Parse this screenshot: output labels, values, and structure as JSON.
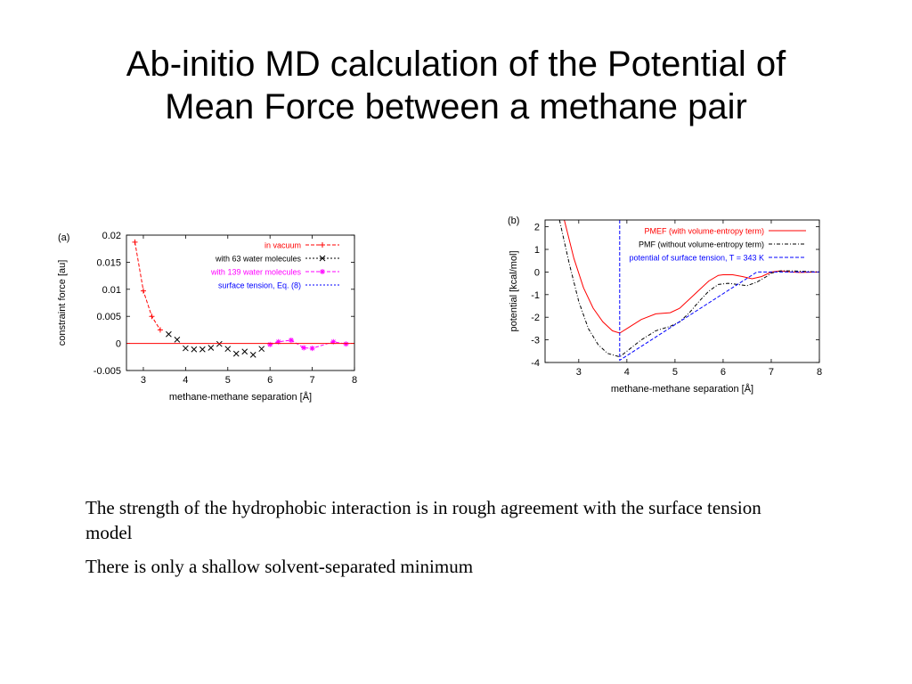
{
  "slide": {
    "title_line1": "Ab-initio MD calculation of the Potential of",
    "title_line2": "Mean Force between a methane pair",
    "bullets": [
      "The strength of the hydrophobic interaction is in rough agreement with the surface tension model",
      "There is only a shallow solvent-separated minimum"
    ]
  },
  "chart_data": [
    {
      "type": "scatter",
      "panel_label": "(a)",
      "title": "",
      "xlabel": "methane-methane separation [Å]",
      "ylabel": "constraint force [au]",
      "xlim": [
        2.6,
        8
      ],
      "ylim": [
        -0.005,
        0.02
      ],
      "xticks": [
        3,
        4,
        5,
        6,
        7,
        8
      ],
      "yticks": [
        -0.005,
        0,
        0.005,
        0.01,
        0.015,
        0.02
      ],
      "ytick_labels": [
        "-0.005",
        "0",
        "0.005",
        "0.01",
        "0.015",
        "0.02"
      ],
      "grid": false,
      "legend_position": "top-right",
      "series": [
        {
          "name": "in vacuum",
          "color": "#ff0000",
          "marker": "+",
          "line": "dashed",
          "x": [
            2.8,
            3.0,
            3.2,
            3.4
          ],
          "y": [
            0.0187,
            0.0097,
            0.005,
            0.0025
          ]
        },
        {
          "name": "with 63 water molecules",
          "color": "#000000",
          "marker": "x",
          "line": "none",
          "x": [
            3.6,
            3.8,
            4.0,
            4.2,
            4.4,
            4.6,
            4.8,
            5.0,
            5.2,
            5.4,
            5.6,
            5.8
          ],
          "y": [
            0.0017,
            0.0007,
            -0.0009,
            -0.0011,
            -0.0011,
            -0.0008,
            -0.0001,
            -0.001,
            -0.0019,
            -0.0015,
            -0.0021,
            -0.001
          ]
        },
        {
          "name": "with 139 water molecules",
          "color": "#ff00ff",
          "marker": "*",
          "line": "dashed",
          "x": [
            6.0,
            6.2,
            6.5,
            6.8,
            7.0,
            7.5,
            7.8
          ],
          "y": [
            -0.0002,
            0.0003,
            0.0006,
            -0.0008,
            -0.0009,
            0.0003,
            -0.0001
          ]
        },
        {
          "name": "surface tension, Eq. (8)",
          "color": "#0000ff",
          "marker": "none",
          "line": "dotted",
          "x": [],
          "y": []
        },
        {
          "name": "",
          "color": "#ff0000",
          "marker": "none",
          "line": "solid",
          "x": [
            2.6,
            8.0
          ],
          "y": [
            0,
            0
          ]
        }
      ]
    },
    {
      "type": "line",
      "panel_label": "(b)",
      "title": "",
      "xlabel": "methane-methane separation [Å]",
      "ylabel": "potential [kcal/mol]",
      "xlim": [
        2.3,
        8
      ],
      "ylim": [
        -4,
        2.3
      ],
      "xticks": [
        3,
        4,
        5,
        6,
        7,
        8
      ],
      "yticks": [
        -4,
        -3,
        -2,
        -1,
        0,
        1,
        2
      ],
      "grid": false,
      "legend_position": "top-right",
      "series": [
        {
          "name": "PMEF (with volume-entropy term)",
          "color": "#ff0000",
          "line": "solid",
          "x": [
            2.7,
            2.9,
            3.1,
            3.3,
            3.5,
            3.7,
            3.85,
            4.0,
            4.3,
            4.6,
            4.9,
            5.1,
            5.3,
            5.5,
            5.7,
            5.9,
            6.0,
            6.2,
            6.4,
            6.6,
            6.8,
            7.0,
            7.2,
            7.4,
            7.6,
            8.0
          ],
          "y": [
            2.3,
            0.6,
            -0.7,
            -1.6,
            -2.2,
            -2.6,
            -2.7,
            -2.5,
            -2.1,
            -1.85,
            -1.8,
            -1.6,
            -1.2,
            -0.8,
            -0.4,
            -0.15,
            -0.12,
            -0.12,
            -0.2,
            -0.3,
            -0.2,
            0.0,
            0.05,
            0.0,
            -0.02,
            0.0
          ]
        },
        {
          "name": "PMF (without volume-entropy term)",
          "color": "#000000",
          "line": "dashdot",
          "x": [
            2.6,
            2.8,
            3.0,
            3.2,
            3.4,
            3.6,
            3.85,
            4.0,
            4.3,
            4.6,
            4.9,
            5.1,
            5.3,
            5.5,
            5.7,
            5.9,
            6.1,
            6.3,
            6.5,
            6.7,
            6.9,
            7.0,
            7.2,
            7.4,
            8.0
          ],
          "y": [
            2.3,
            0.4,
            -1.3,
            -2.5,
            -3.2,
            -3.6,
            -3.75,
            -3.5,
            -3.0,
            -2.6,
            -2.4,
            -2.2,
            -1.8,
            -1.3,
            -0.85,
            -0.55,
            -0.5,
            -0.55,
            -0.6,
            -0.45,
            -0.2,
            -0.05,
            0.05,
            0.05,
            0.0
          ]
        },
        {
          "name": "potential of surface tension, T = 343 K",
          "color": "#0000ff",
          "line": "dashed",
          "x": [
            3.85,
            3.85,
            6.7,
            8.0
          ],
          "y": [
            2.3,
            -3.9,
            0.0,
            0.0
          ]
        }
      ]
    }
  ]
}
